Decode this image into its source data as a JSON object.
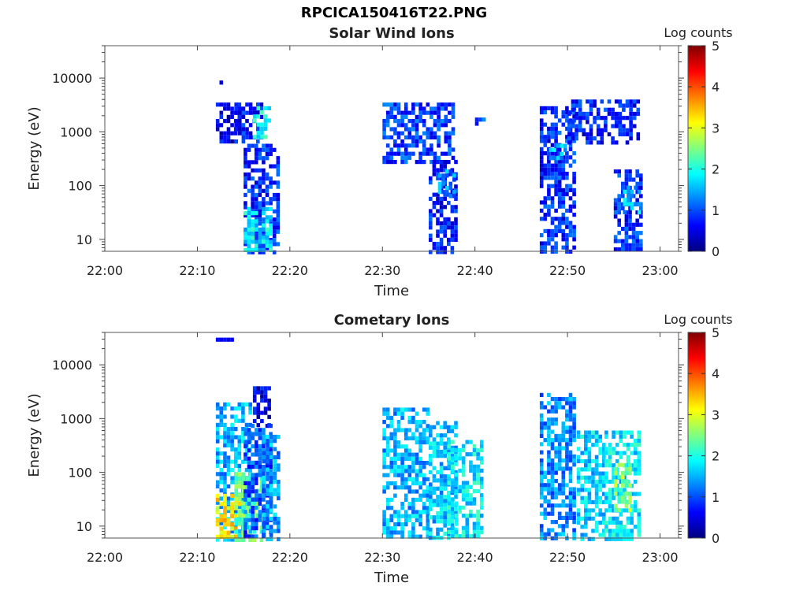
{
  "figure_title": "RPCICA150416T22.PNG",
  "chart_data": [
    {
      "type": "heatmap",
      "title": "Solar Wind Ions",
      "xlabel": "Time",
      "ylabel": "Energy (eV)",
      "x_ticks": [
        "22:00",
        "22:10",
        "22:20",
        "22:30",
        "22:40",
        "22:50",
        "23:00"
      ],
      "y_ticks": [
        "10",
        "100",
        "1000",
        "10000"
      ],
      "y_scale": "log",
      "ylim": [
        6,
        40000
      ],
      "xlim": [
        "22:00",
        "23:02"
      ],
      "colorbar": {
        "label": "Log counts",
        "ticks": [
          "0",
          "1",
          "2",
          "3",
          "4",
          "5"
        ],
        "range": [
          0,
          5
        ],
        "colormap": "jet"
      },
      "bursts": [
        {
          "start": "22:12",
          "end": "22:13",
          "energy_range": [
            8000,
            9000
          ],
          "log_counts": 0.3
        },
        {
          "start": "22:12",
          "end": "22:14",
          "energy_range": [
            700,
            3500
          ],
          "log_counts": 0.5
        },
        {
          "start": "22:14",
          "end": "22:16",
          "energy_range": [
            700,
            3500
          ],
          "log_counts": 0.7
        },
        {
          "start": "22:15",
          "end": "22:18",
          "energy_range": [
            6,
            600
          ],
          "log_counts": 0.8
        },
        {
          "start": "22:15",
          "end": "22:17",
          "energy_range": [
            6,
            40
          ],
          "log_counts": 1.8
        },
        {
          "start": "22:16",
          "end": "22:17",
          "energy_range": [
            800,
            3000
          ],
          "log_counts": 2.0
        },
        {
          "start": "22:30",
          "end": "22:37",
          "energy_range": [
            300,
            3500
          ],
          "log_counts": 0.9
        },
        {
          "start": "22:35",
          "end": "22:37",
          "energy_range": [
            6,
            300
          ],
          "log_counts": 0.7
        },
        {
          "start": "22:36",
          "end": "22:37",
          "energy_range": [
            60,
            200
          ],
          "log_counts": 1.3
        },
        {
          "start": "22:40",
          "end": "22:40",
          "energy_range": [
            1400,
            2200
          ],
          "log_counts": 0.9
        },
        {
          "start": "22:47",
          "end": "22:50",
          "energy_range": [
            6,
            3000
          ],
          "log_counts": 0.8
        },
        {
          "start": "22:48",
          "end": "22:49",
          "energy_range": [
            300,
            600
          ],
          "log_counts": 1.5
        },
        {
          "start": "22:50",
          "end": "22:57",
          "energy_range": [
            600,
            4000
          ],
          "log_counts": 0.7
        },
        {
          "start": "22:55",
          "end": "22:57",
          "energy_range": [
            6,
            200
          ],
          "log_counts": 0.8
        },
        {
          "start": "22:56",
          "end": "22:57",
          "energy_range": [
            30,
            100
          ],
          "log_counts": 1.6
        }
      ]
    },
    {
      "type": "heatmap",
      "title": "Cometary Ions",
      "xlabel": "Time",
      "ylabel": "Energy (eV)",
      "x_ticks": [
        "22:00",
        "22:10",
        "22:20",
        "22:30",
        "22:40",
        "22:50",
        "23:00"
      ],
      "y_ticks": [
        "10",
        "100",
        "1000",
        "10000"
      ],
      "y_scale": "log",
      "ylim": [
        6,
        40000
      ],
      "xlim": [
        "22:00",
        "23:02"
      ],
      "colorbar": {
        "label": "Log counts",
        "ticks": [
          "0",
          "1",
          "2",
          "3",
          "4",
          "5"
        ],
        "range": [
          0,
          5
        ],
        "colormap": "jet"
      },
      "bursts": [
        {
          "start": "22:12",
          "end": "22:13",
          "energy_range": [
            28000,
            32000
          ],
          "log_counts": 0.3
        },
        {
          "start": "22:12",
          "end": "22:15",
          "energy_range": [
            6,
            2000
          ],
          "log_counts": 1.5
        },
        {
          "start": "22:12",
          "end": "22:14",
          "energy_range": [
            6,
            40
          ],
          "log_counts": 3.2
        },
        {
          "start": "22:14",
          "end": "22:16",
          "energy_range": [
            6,
            100
          ],
          "log_counts": 2.4
        },
        {
          "start": "22:15",
          "end": "22:17",
          "energy_range": [
            6,
            800
          ],
          "log_counts": 1.0
        },
        {
          "start": "22:17",
          "end": "22:18",
          "energy_range": [
            6,
            500
          ],
          "log_counts": 1.4
        },
        {
          "start": "22:16",
          "end": "22:17",
          "energy_range": [
            800,
            4000
          ],
          "log_counts": 0.5
        },
        {
          "start": "22:30",
          "end": "22:34",
          "energy_range": [
            6,
            1600
          ],
          "log_counts": 1.5
        },
        {
          "start": "22:35",
          "end": "22:37",
          "energy_range": [
            6,
            900
          ],
          "log_counts": 1.6
        },
        {
          "start": "22:37",
          "end": "22:40",
          "energy_range": [
            6,
            400
          ],
          "log_counts": 1.8
        },
        {
          "start": "22:47",
          "end": "22:50",
          "energy_range": [
            6,
            3000
          ],
          "log_counts": 1.3
        },
        {
          "start": "22:51",
          "end": "22:53",
          "energy_range": [
            6,
            600
          ],
          "log_counts": 1.7
        },
        {
          "start": "22:54",
          "end": "22:57",
          "energy_range": [
            6,
            600
          ],
          "log_counts": 1.8
        },
        {
          "start": "22:55",
          "end": "22:56",
          "energy_range": [
            20,
            150
          ],
          "log_counts": 2.5
        }
      ]
    }
  ]
}
